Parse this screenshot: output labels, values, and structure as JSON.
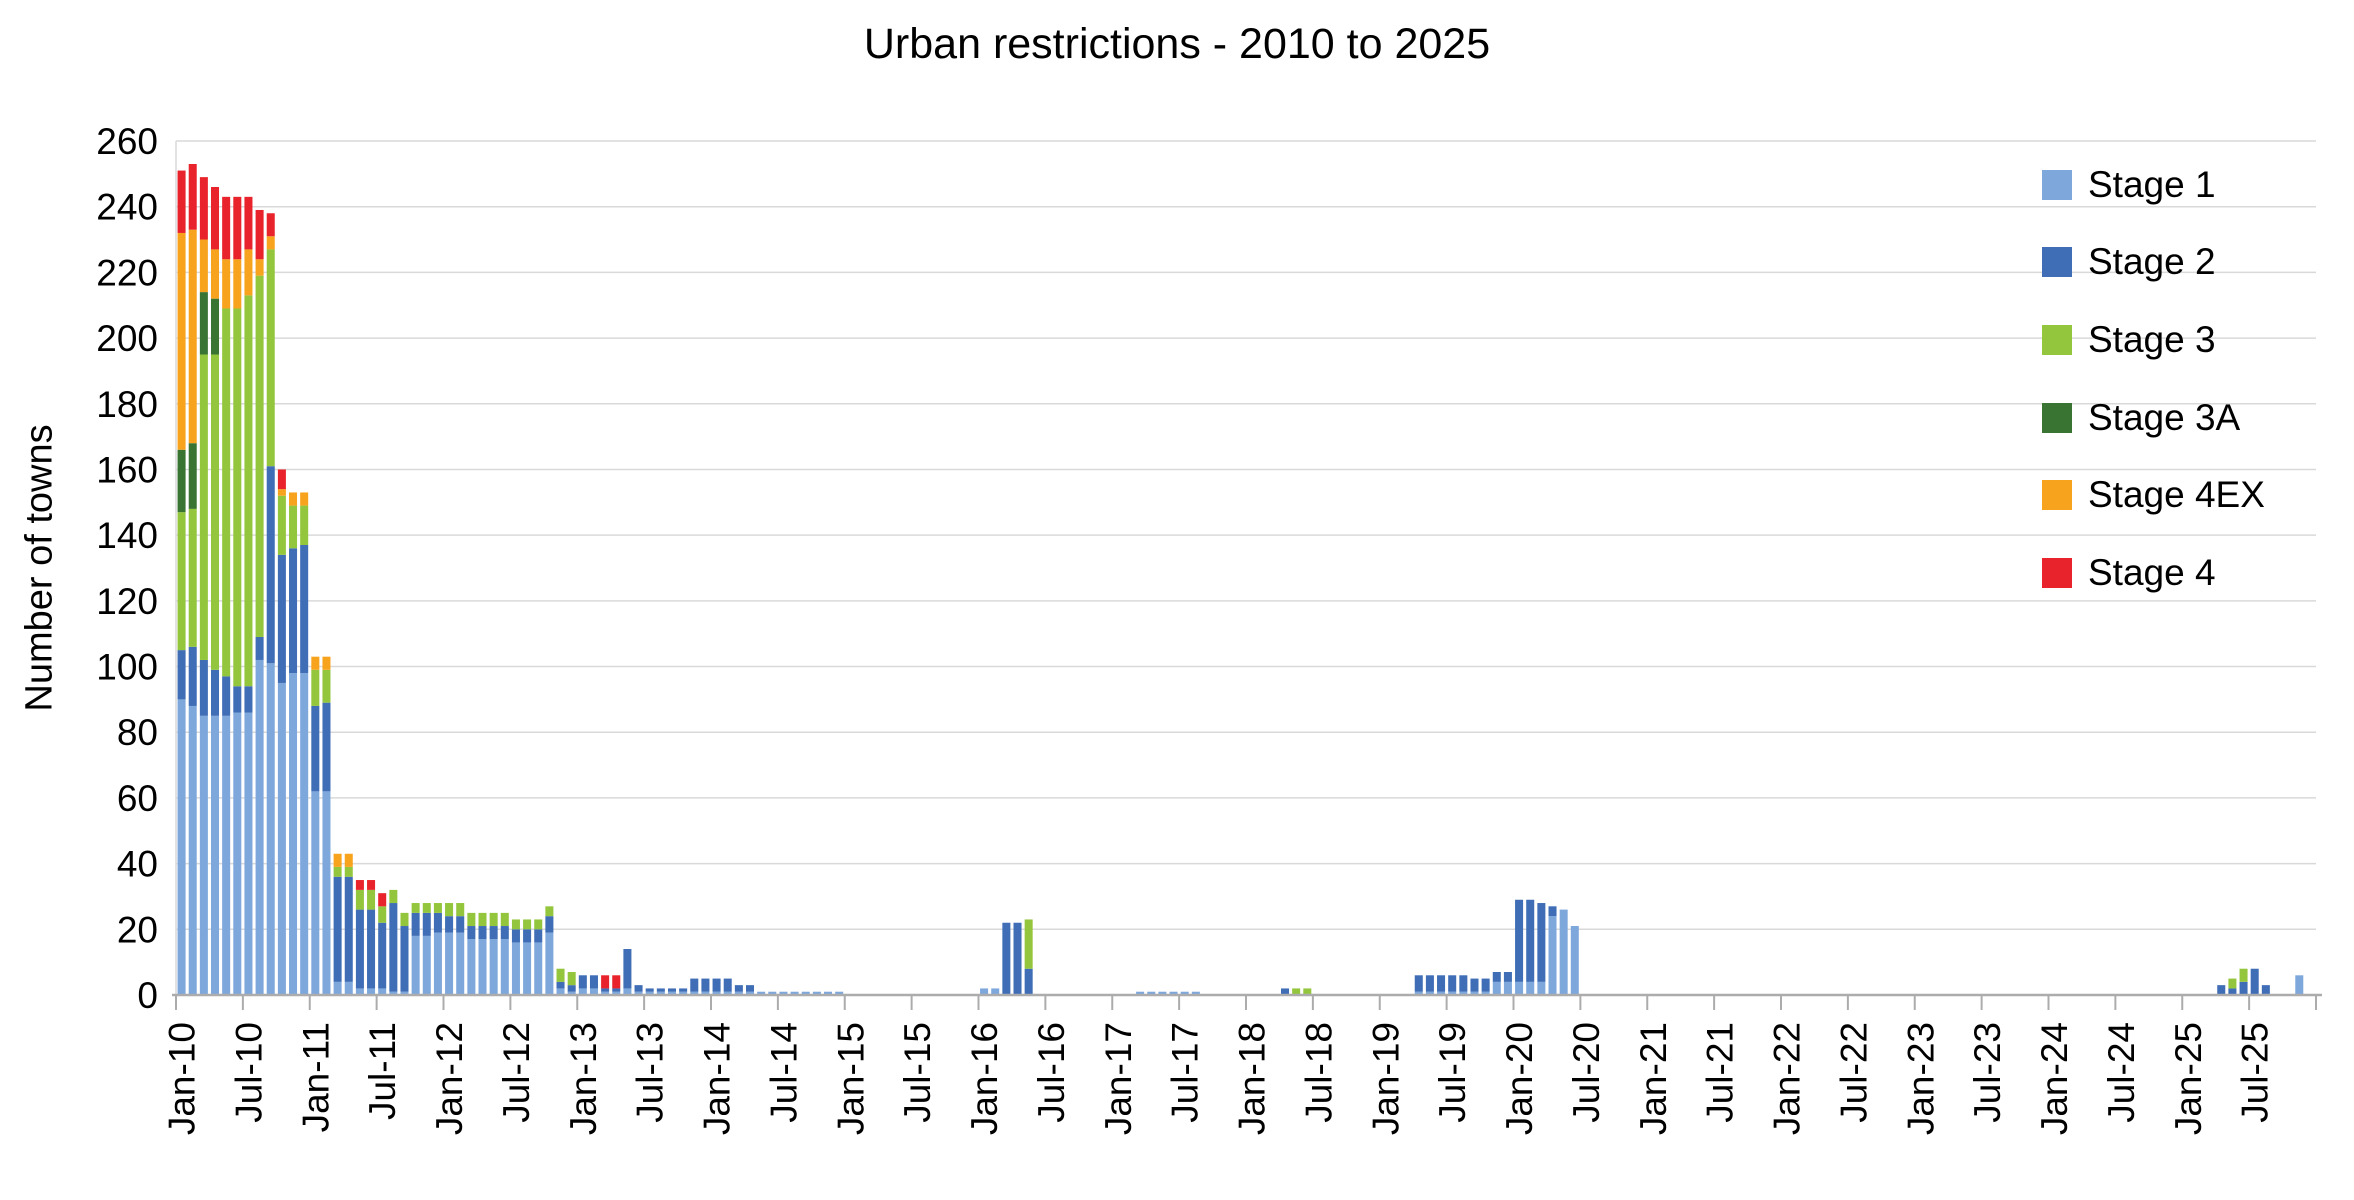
{
  "title": "Urban restrictions - 2010 to 2025",
  "y_axis": {
    "label": "Number of towns"
  },
  "chart_data": {
    "type": "bar",
    "stacked": true,
    "title": "Urban restrictions - 2010 to 2025",
    "ylabel": "Number of towns",
    "y_max": 260,
    "y_ticks": [
      0,
      20,
      40,
      60,
      80,
      100,
      120,
      140,
      160,
      180,
      200,
      220,
      240,
      260
    ],
    "months_total": 192,
    "x_first_month": "Jan-10",
    "x_tick_every": 6,
    "x_tick_labels": [
      "Jan-10",
      "Jul-10",
      "Jan-11",
      "Jul-11",
      "Jan-12",
      "Jul-12",
      "Jan-13",
      "Jul-13",
      "Jan-14",
      "Jul-14",
      "Jan-15",
      "Jul-15",
      "Jan-16",
      "Jul-16",
      "Jan-17",
      "Jul-17",
      "Jan-18",
      "Jul-18",
      "Jan-19",
      "Jul-19",
      "Jan-20",
      "Jul-20",
      "Jan-21",
      "Jul-21",
      "Jan-22",
      "Jul-22",
      "Jan-23",
      "Jul-23",
      "Jan-24",
      "Jul-24",
      "Jan-25",
      "Jul-25"
    ],
    "legend_position": "right-top",
    "grid": true,
    "series": [
      {
        "name": "Stage 1",
        "color": "#7EA8DC",
        "values": [
          90,
          88,
          85,
          85,
          85,
          86,
          86,
          102,
          101,
          95,
          98,
          98,
          62,
          62,
          4,
          4,
          2,
          2,
          2,
          1,
          1,
          18,
          18,
          19,
          19,
          19,
          17,
          17,
          17,
          17,
          16,
          16,
          16,
          19,
          2,
          1,
          2,
          2,
          1,
          1,
          2,
          1,
          1,
          1,
          1,
          1,
          1,
          1,
          1,
          1,
          1,
          1,
          1,
          1,
          1,
          1,
          1,
          1,
          1,
          1,
          0,
          0,
          0,
          0,
          0,
          0,
          0,
          0,
          0,
          0,
          0,
          0,
          2,
          2,
          0,
          0,
          0,
          0,
          0,
          0,
          0,
          0,
          0,
          0,
          0,
          0,
          1,
          1,
          1,
          1,
          1,
          1,
          0,
          0,
          0,
          0,
          0,
          0,
          0,
          0,
          0,
          0,
          0,
          0,
          0,
          0,
          0,
          0,
          0,
          0,
          0,
          1,
          1,
          1,
          1,
          1,
          1,
          1,
          4,
          4,
          4,
          4,
          4,
          24,
          26,
          21,
          0,
          0,
          0,
          0,
          0,
          0,
          0,
          0,
          0,
          0,
          0,
          0,
          0,
          0,
          0,
          0,
          0,
          0,
          0,
          0,
          0,
          0,
          0,
          0,
          0,
          0,
          0,
          0,
          0,
          0,
          0,
          0,
          0,
          0,
          0,
          0,
          0,
          0,
          0,
          0,
          0,
          0,
          0,
          0,
          0,
          0,
          0,
          0,
          0,
          0,
          0,
          0,
          0,
          0,
          0,
          0,
          0,
          0,
          0,
          0,
          0,
          0,
          0,
          0,
          6,
          0
        ]
      },
      {
        "name": "Stage 2",
        "color": "#3F6DB6",
        "values": [
          15,
          18,
          17,
          14,
          12,
          8,
          8,
          7,
          60,
          39,
          38,
          39,
          26,
          27,
          32,
          32,
          24,
          24,
          20,
          27,
          20,
          7,
          7,
          6,
          5,
          5,
          4,
          4,
          4,
          4,
          4,
          4,
          4,
          5,
          2,
          2,
          4,
          4,
          1,
          1,
          12,
          2,
          1,
          1,
          1,
          1,
          4,
          4,
          4,
          4,
          2,
          2,
          0,
          0,
          0,
          0,
          0,
          0,
          0,
          0,
          0,
          0,
          0,
          0,
          0,
          0,
          0,
          0,
          0,
          0,
          0,
          0,
          0,
          0,
          22,
          22,
          8,
          0,
          0,
          0,
          0,
          0,
          0,
          0,
          0,
          0,
          0,
          0,
          0,
          0,
          0,
          0,
          0,
          0,
          0,
          0,
          0,
          0,
          0,
          2,
          0,
          0,
          0,
          0,
          0,
          0,
          0,
          0,
          0,
          0,
          0,
          5,
          5,
          5,
          5,
          5,
          4,
          4,
          3,
          3,
          25,
          25,
          24,
          3,
          0,
          0,
          0,
          0,
          0,
          0,
          0,
          0,
          0,
          0,
          0,
          0,
          0,
          0,
          0,
          0,
          0,
          0,
          0,
          0,
          0,
          0,
          0,
          0,
          0,
          0,
          0,
          0,
          0,
          0,
          0,
          0,
          0,
          0,
          0,
          0,
          0,
          0,
          0,
          0,
          0,
          0,
          0,
          0,
          0,
          0,
          0,
          0,
          0,
          0,
          0,
          0,
          0,
          0,
          0,
          0,
          0,
          0,
          0,
          3,
          2,
          4,
          8,
          3,
          0,
          0,
          0,
          0
        ]
      },
      {
        "name": "Stage 3",
        "color": "#94C63D",
        "values": [
          42,
          42,
          93,
          96,
          112,
          115,
          119,
          110,
          66,
          18,
          13,
          12,
          11,
          10,
          3,
          3,
          6,
          6,
          5,
          4,
          4,
          3,
          3,
          3,
          4,
          4,
          4,
          4,
          4,
          4,
          3,
          3,
          3,
          3,
          4,
          4,
          0,
          0,
          0,
          0,
          0,
          0,
          0,
          0,
          0,
          0,
          0,
          0,
          0,
          0,
          0,
          0,
          0,
          0,
          0,
          0,
          0,
          0,
          0,
          0,
          0,
          0,
          0,
          0,
          0,
          0,
          0,
          0,
          0,
          0,
          0,
          0,
          0,
          0,
          0,
          0,
          15,
          0,
          0,
          0,
          0,
          0,
          0,
          0,
          0,
          0,
          0,
          0,
          0,
          0,
          0,
          0,
          0,
          0,
          0,
          0,
          0,
          0,
          0,
          0,
          2,
          2,
          0,
          0,
          0,
          0,
          0,
          0,
          0,
          0,
          0,
          0,
          0,
          0,
          0,
          0,
          0,
          0,
          0,
          0,
          0,
          0,
          0,
          0,
          0,
          0,
          0,
          0,
          0,
          0,
          0,
          0,
          0,
          0,
          0,
          0,
          0,
          0,
          0,
          0,
          0,
          0,
          0,
          0,
          0,
          0,
          0,
          0,
          0,
          0,
          0,
          0,
          0,
          0,
          0,
          0,
          0,
          0,
          0,
          0,
          0,
          0,
          0,
          0,
          0,
          0,
          0,
          0,
          0,
          0,
          0,
          0,
          0,
          0,
          0,
          0,
          0,
          0,
          0,
          0,
          0,
          0,
          0,
          0,
          3,
          4,
          0,
          0,
          0,
          0,
          0,
          0
        ]
      },
      {
        "name": "Stage 3A",
        "color": "#3A7433",
        "values": [
          19,
          20,
          19,
          17,
          0,
          0,
          0,
          0,
          0,
          0,
          0,
          0,
          0,
          0,
          0,
          0,
          0,
          0,
          0,
          0,
          0,
          0,
          0,
          0,
          0,
          0,
          0,
          0,
          0,
          0,
          0,
          0,
          0,
          0,
          0,
          0,
          0,
          0,
          0,
          0,
          0,
          0,
          0,
          0,
          0,
          0,
          0,
          0,
          0,
          0,
          0,
          0,
          0,
          0,
          0,
          0,
          0,
          0,
          0,
          0,
          0,
          0,
          0,
          0,
          0,
          0,
          0,
          0,
          0,
          0,
          0,
          0,
          0,
          0,
          0,
          0,
          0,
          0,
          0,
          0,
          0,
          0,
          0,
          0,
          0,
          0,
          0,
          0,
          0,
          0,
          0,
          0,
          0,
          0,
          0,
          0,
          0,
          0,
          0,
          0,
          0,
          0,
          0,
          0,
          0,
          0,
          0,
          0,
          0,
          0,
          0,
          0,
          0,
          0,
          0,
          0,
          0,
          0,
          0,
          0,
          0,
          0,
          0,
          0,
          0,
          0,
          0,
          0,
          0,
          0,
          0,
          0,
          0,
          0,
          0,
          0,
          0,
          0,
          0,
          0,
          0,
          0,
          0,
          0,
          0,
          0,
          0,
          0,
          0,
          0,
          0,
          0,
          0,
          0,
          0,
          0,
          0,
          0,
          0,
          0,
          0,
          0,
          0,
          0,
          0,
          0,
          0,
          0,
          0,
          0,
          0,
          0,
          0,
          0,
          0,
          0,
          0,
          0,
          0,
          0,
          0,
          0,
          0,
          0,
          0,
          0,
          0,
          0,
          0,
          0,
          0,
          0
        ]
      },
      {
        "name": "Stage 4EX",
        "color": "#F8A31D",
        "values": [
          66,
          65,
          16,
          15,
          15,
          15,
          14,
          5,
          4,
          2,
          4,
          4,
          4,
          4,
          4,
          4,
          0,
          0,
          0,
          0,
          0,
          0,
          0,
          0,
          0,
          0,
          0,
          0,
          0,
          0,
          0,
          0,
          0,
          0,
          0,
          0,
          0,
          0,
          0,
          0,
          0,
          0,
          0,
          0,
          0,
          0,
          0,
          0,
          0,
          0,
          0,
          0,
          0,
          0,
          0,
          0,
          0,
          0,
          0,
          0,
          0,
          0,
          0,
          0,
          0,
          0,
          0,
          0,
          0,
          0,
          0,
          0,
          0,
          0,
          0,
          0,
          0,
          0,
          0,
          0,
          0,
          0,
          0,
          0,
          0,
          0,
          0,
          0,
          0,
          0,
          0,
          0,
          0,
          0,
          0,
          0,
          0,
          0,
          0,
          0,
          0,
          0,
          0,
          0,
          0,
          0,
          0,
          0,
          0,
          0,
          0,
          0,
          0,
          0,
          0,
          0,
          0,
          0,
          0,
          0,
          0,
          0,
          0,
          0,
          0,
          0,
          0,
          0,
          0,
          0,
          0,
          0,
          0,
          0,
          0,
          0,
          0,
          0,
          0,
          0,
          0,
          0,
          0,
          0,
          0,
          0,
          0,
          0,
          0,
          0,
          0,
          0,
          0,
          0,
          0,
          0,
          0,
          0,
          0,
          0,
          0,
          0,
          0,
          0,
          0,
          0,
          0,
          0,
          0,
          0,
          0,
          0,
          0,
          0,
          0,
          0,
          0,
          0,
          0,
          0,
          0,
          0,
          0,
          0,
          0,
          0,
          0,
          0,
          0,
          0,
          0,
          0
        ]
      },
      {
        "name": "Stage 4",
        "color": "#E9232B",
        "values": [
          19,
          20,
          19,
          19,
          19,
          19,
          16,
          15,
          7,
          6,
          0,
          0,
          0,
          0,
          0,
          0,
          3,
          3,
          4,
          0,
          0,
          0,
          0,
          0,
          0,
          0,
          0,
          0,
          0,
          0,
          0,
          0,
          0,
          0,
          0,
          0,
          0,
          0,
          4,
          4,
          0,
          0,
          0,
          0,
          0,
          0,
          0,
          0,
          0,
          0,
          0,
          0,
          0,
          0,
          0,
          0,
          0,
          0,
          0,
          0,
          0,
          0,
          0,
          0,
          0,
          0,
          0,
          0,
          0,
          0,
          0,
          0,
          0,
          0,
          0,
          0,
          0,
          0,
          0,
          0,
          0,
          0,
          0,
          0,
          0,
          0,
          0,
          0,
          0,
          0,
          0,
          0,
          0,
          0,
          0,
          0,
          0,
          0,
          0,
          0,
          0,
          0,
          0,
          0,
          0,
          0,
          0,
          0,
          0,
          0,
          0,
          0,
          0,
          0,
          0,
          0,
          0,
          0,
          0,
          0,
          0,
          0,
          0,
          0,
          0,
          0,
          0,
          0,
          0,
          0,
          0,
          0,
          0,
          0,
          0,
          0,
          0,
          0,
          0,
          0,
          0,
          0,
          0,
          0,
          0,
          0,
          0,
          0,
          0,
          0,
          0,
          0,
          0,
          0,
          0,
          0,
          0,
          0,
          0,
          0,
          0,
          0,
          0,
          0,
          0,
          0,
          0,
          0,
          0,
          0,
          0,
          0,
          0,
          0,
          0,
          0,
          0,
          0,
          0,
          0,
          0,
          0,
          0,
          0,
          0,
          0,
          0,
          0,
          0,
          0,
          0,
          0
        ]
      }
    ]
  }
}
